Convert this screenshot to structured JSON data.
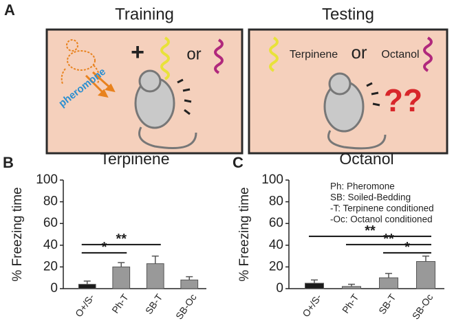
{
  "panel_a": {
    "label": "A",
    "training_title": "Training",
    "testing_title": "Testing",
    "plus": "+",
    "or_training": "or",
    "pheromone": "pheromone",
    "terpinene": "Terpinene",
    "or_testing": "or",
    "octanol": "Octanol",
    "question": "??"
  },
  "chart_data": [
    {
      "type": "bar",
      "panel_label": "B",
      "title": "Terpinene",
      "ylabel": "% Freezing time",
      "categories": [
        "O+/S-",
        "Ph-T",
        "SB-T",
        "SB-Oc"
      ],
      "values": [
        4,
        20,
        23,
        8
      ],
      "errors": [
        3,
        4,
        7,
        3
      ],
      "colors": [
        "#1a1a1a",
        "#999999",
        "#999999",
        "#999999"
      ],
      "ylim": [
        0,
        100
      ],
      "yticks": [
        0,
        20,
        40,
        60,
        80,
        100
      ],
      "comparisons": [
        {
          "between": [
            "O+/S-",
            "Ph-T"
          ],
          "label": "*"
        },
        {
          "between": [
            "O+/S-",
            "SB-T"
          ],
          "label": "**"
        }
      ]
    },
    {
      "type": "bar",
      "panel_label": "C",
      "title": "Octanol",
      "ylabel": "% Freezing time",
      "categories": [
        "O+/S-",
        "Ph-T",
        "SB-T",
        "SB-Oc"
      ],
      "values": [
        5,
        2,
        10,
        25
      ],
      "errors": [
        3,
        2,
        4,
        5
      ],
      "colors": [
        "#1a1a1a",
        "#999999",
        "#999999",
        "#999999"
      ],
      "ylim": [
        0,
        100
      ],
      "yticks": [
        0,
        20,
        40,
        60,
        80,
        100
      ],
      "comparisons": [
        {
          "between": [
            "SB-T",
            "SB-Oc"
          ],
          "label": "*"
        },
        {
          "between": [
            "Ph-T",
            "SB-Oc"
          ],
          "label": "**"
        },
        {
          "between": [
            "O+/S-",
            "SB-Oc"
          ],
          "label": "**"
        }
      ],
      "notes": [
        "Ph: Pheromone",
        "SB: Soiled-Bedding",
        "-T: Terpinene conditioned",
        "-Oc: Octanol conditioned"
      ]
    }
  ]
}
